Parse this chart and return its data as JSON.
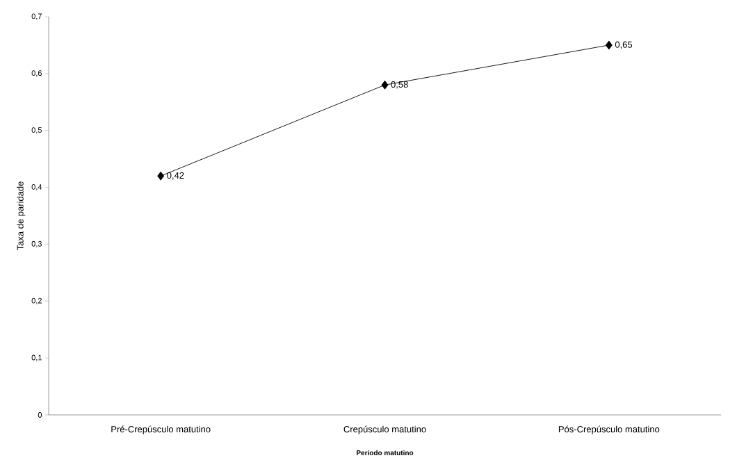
{
  "chart_data": {
    "type": "line",
    "xlabel": "Período matutino",
    "ylabel": "Taxa de paridade",
    "categories": [
      "Pré-Crepúsculo matutino",
      "Crepúsculo matutino",
      "Pós-Crepúsculo matutino"
    ],
    "series": [
      {
        "color": "#000000",
        "values": [
          0.42,
          0.58,
          0.65
        ],
        "value_labels": [
          "0,42",
          "0,58",
          "0,65"
        ]
      }
    ],
    "ylim": [
      0,
      0.7
    ],
    "yticks": [
      {
        "value": 0,
        "label": "0"
      },
      {
        "value": 0.1,
        "label": "0,1"
      },
      {
        "value": 0.2,
        "label": "0,2"
      },
      {
        "value": 0.3,
        "label": "0,3"
      },
      {
        "value": 0.4,
        "label": "0,4"
      },
      {
        "value": 0.5,
        "label": "0,5"
      },
      {
        "value": 0.6,
        "label": "0,6"
      },
      {
        "value": 0.7,
        "label": "0,7"
      }
    ],
    "marker": "diamond",
    "line_style": "solid"
  }
}
